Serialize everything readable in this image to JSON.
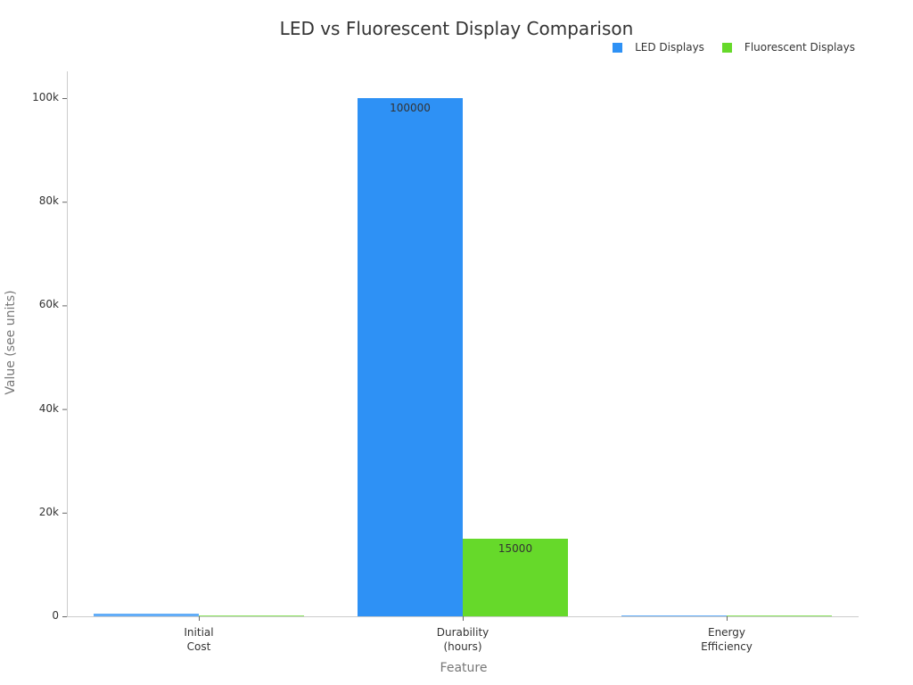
{
  "chart_data": {
    "type": "bar",
    "title": "LED vs Fluorescent Display Comparison",
    "xlabel": "Feature",
    "ylabel": "Value (see units)",
    "categories": [
      "Initial\nCost",
      "Durability\n(hours)",
      "Energy\nEfficiency"
    ],
    "category_lines": [
      [
        "Initial",
        "Cost"
      ],
      [
        "Durability",
        "(hours)"
      ],
      [
        "Energy",
        "Efficiency"
      ]
    ],
    "series": [
      {
        "name": "LED Displays",
        "color": "#2e91f5",
        "values": [
          600,
          100000,
          90
        ]
      },
      {
        "name": "Fluorescent Displays",
        "color": "#66d92a",
        "values": [
          200,
          15000,
          60
        ]
      }
    ],
    "data_labels": {
      "Durability (hours)": {
        "LED Displays": "100000",
        "Fluorescent Displays": "15000"
      }
    },
    "ylim": [
      0,
      105000
    ],
    "yticks": [
      0,
      20000,
      40000,
      60000,
      80000,
      100000
    ],
    "ytick_labels": [
      "0",
      "20k",
      "40k",
      "60k",
      "80k",
      "100k"
    ],
    "grid": false,
    "legend_position": "top-right"
  },
  "legend": {
    "led": "LED Displays",
    "fluorescent": "Fluorescent Displays"
  }
}
